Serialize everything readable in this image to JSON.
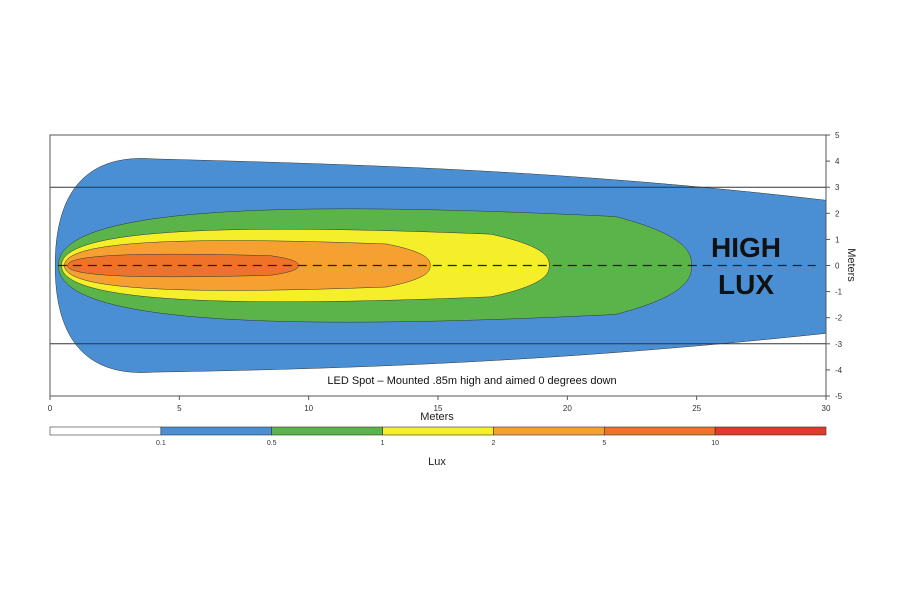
{
  "chart_data": {
    "type": "heatmap",
    "caption": "LED Spot – Mounted .85m high and aimed 0 degrees down",
    "xlabel": "Meters",
    "ylabel": "Meters",
    "xlim": [
      0,
      30
    ],
    "ylim": [
      -5,
      5
    ],
    "xticks": [
      "0",
      "5",
      "10",
      "15",
      "20",
      "25",
      "30"
    ],
    "yticks": [
      "5",
      "4",
      "3",
      "2",
      "1",
      "0",
      "-1",
      "-2",
      "-3",
      "-4",
      "-5"
    ],
    "reference_lines_y": [
      3,
      -3
    ],
    "centerline_y": 0,
    "annotation": [
      "HIGH",
      "LUX"
    ],
    "colorbar": {
      "label": "Lux",
      "ticks": [
        "0.1",
        "0.5",
        "1",
        "2",
        "5",
        "10"
      ],
      "colors": [
        "#ffffff",
        "#4a8fd4",
        "#5bb44a",
        "#f5ee2a",
        "#f5a030",
        "#ee7328",
        "#e03a2a"
      ]
    },
    "contours": [
      {
        "lux": "0.1",
        "color": "#4a8fd4",
        "reach_m": 30,
        "half_width_m": 4.3
      },
      {
        "lux": "0.5",
        "color": "#5bb44a",
        "reach_m": 24.8,
        "half_width_m": 2.5
      },
      {
        "lux": "1",
        "color": "#f5ee2a",
        "reach_m": 19.3,
        "half_width_m": 1.6
      },
      {
        "lux": "2",
        "color": "#f5a030",
        "reach_m": 14.7,
        "half_width_m": 1.1
      },
      {
        "lux": "5",
        "color": "#ee7328",
        "reach_m": 9.6,
        "half_width_m": 0.5
      }
    ]
  }
}
